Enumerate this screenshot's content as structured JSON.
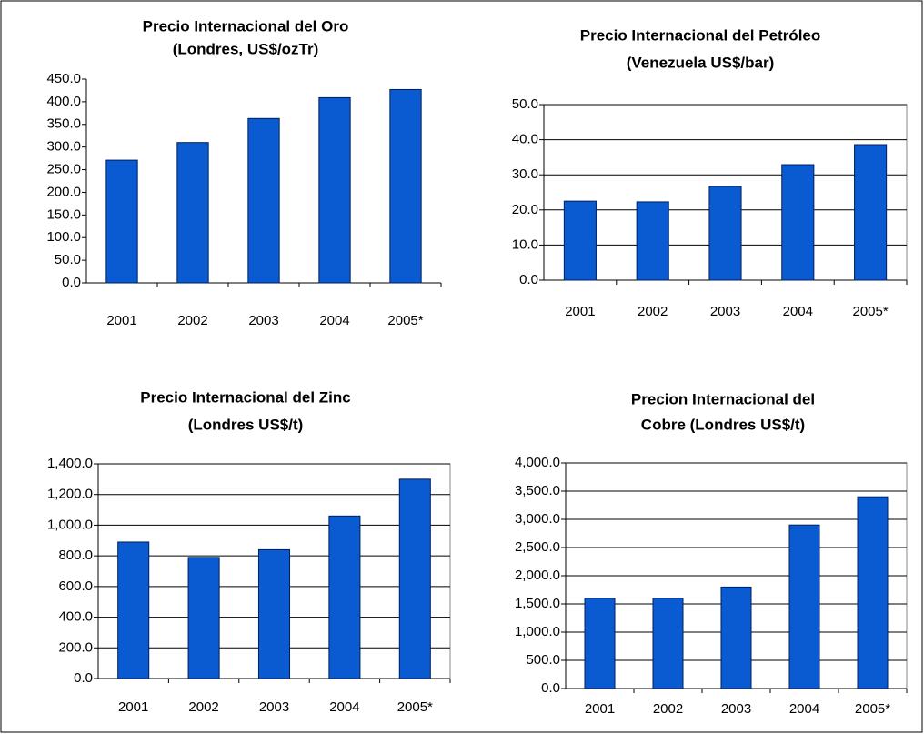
{
  "chart_data": [
    {
      "type": "bar",
      "title": "Precio Internacional del Oro",
      "subtitle": "(Londres, US$/ozTr)",
      "categories": [
        "2001",
        "2002",
        "2003",
        "2004",
        "2005*"
      ],
      "values": [
        271,
        310,
        363,
        409,
        427
      ],
      "color": "#0a5ad2",
      "ylim": [
        0,
        450
      ],
      "yticks": [
        {
          "value": 0,
          "label": "0.0"
        },
        {
          "value": 50,
          "label": "50.0"
        },
        {
          "value": 100,
          "label": "100.0"
        },
        {
          "value": 150,
          "label": "150.0"
        },
        {
          "value": 200,
          "label": "200.0"
        },
        {
          "value": 250,
          "label": "250.0"
        },
        {
          "value": 300,
          "label": "300.0"
        },
        {
          "value": 350,
          "label": "350.0"
        },
        {
          "value": 400,
          "label": "400.0"
        },
        {
          "value": 450,
          "label": "450.0"
        }
      ],
      "grid": false
    },
    {
      "type": "bar",
      "title": "Precio Internacional del Petróleo",
      "subtitle": "(Venezuela US$/bar)",
      "categories": [
        "2001",
        "2002",
        "2003",
        "2004",
        "2005*"
      ],
      "values": [
        22.5,
        22.3,
        26.7,
        32.9,
        38.6
      ],
      "color": "#0a5ad2",
      "ylim": [
        0,
        50
      ],
      "yticks": [
        {
          "value": 0,
          "label": "0.0"
        },
        {
          "value": 10,
          "label": "10.0"
        },
        {
          "value": 20,
          "label": "20.0"
        },
        {
          "value": 30,
          "label": "30.0"
        },
        {
          "value": 40,
          "label": "40.0"
        },
        {
          "value": 50,
          "label": "50.0"
        }
      ],
      "grid": true
    },
    {
      "type": "bar",
      "title": "Precio Internacional del Zinc",
      "subtitle": "(Londres US$/t)",
      "categories": [
        "2001",
        "2002",
        "2003",
        "2004",
        "2005*"
      ],
      "values": [
        890,
        790,
        840,
        1060,
        1300
      ],
      "color": "#0a5ad2",
      "ylim": [
        0,
        1400
      ],
      "yticks": [
        {
          "value": 0,
          "label": "0.0"
        },
        {
          "value": 200,
          "label": "200.0"
        },
        {
          "value": 400,
          "label": "400.0"
        },
        {
          "value": 600,
          "label": "600.0"
        },
        {
          "value": 800,
          "label": "800.0"
        },
        {
          "value": 1000,
          "label": "1,000.0"
        },
        {
          "value": 1200,
          "label": "1,200.0"
        },
        {
          "value": 1400,
          "label": "1,400.0"
        }
      ],
      "grid": true
    },
    {
      "type": "bar",
      "title": "Precion Internacional del",
      "subtitle": "Cobre (Londres US$/t)",
      "categories": [
        "2001",
        "2002",
        "2003",
        "2004",
        "2005*"
      ],
      "values": [
        1600,
        1600,
        1800,
        2900,
        3400
      ],
      "color": "#0a5ad2",
      "ylim": [
        0,
        4000
      ],
      "yticks": [
        {
          "value": 0,
          "label": "0.0"
        },
        {
          "value": 500,
          "label": "500.0"
        },
        {
          "value": 1000,
          "label": "1,000.0"
        },
        {
          "value": 1500,
          "label": "1,500.0"
        },
        {
          "value": 2000,
          "label": "2,000.0"
        },
        {
          "value": 2500,
          "label": "2,500.0"
        },
        {
          "value": 3000,
          "label": "3,000.0"
        },
        {
          "value": 3500,
          "label": "3,500.0"
        },
        {
          "value": 4000,
          "label": "4,000.0"
        }
      ],
      "grid": true
    }
  ]
}
